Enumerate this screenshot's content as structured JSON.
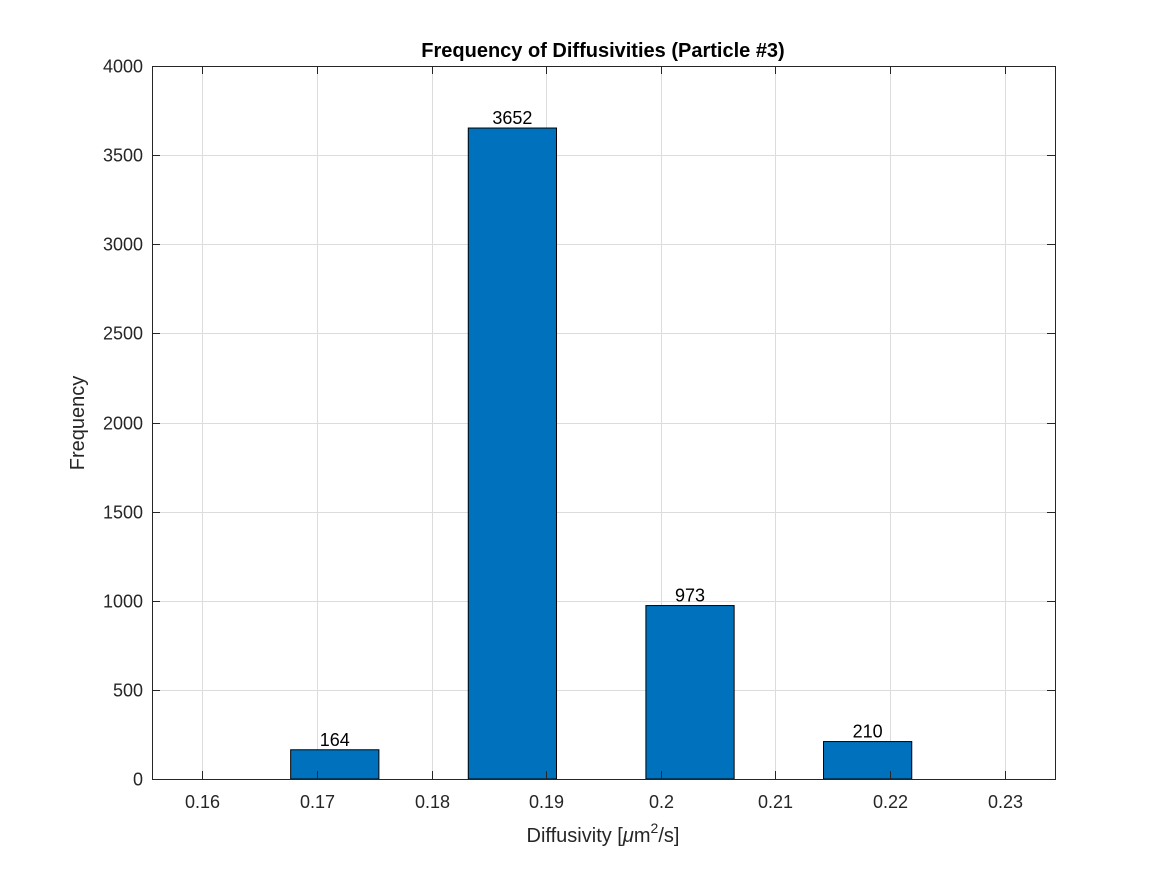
{
  "chart_data": {
    "type": "bar",
    "title": "Frequency of Diffusivities (Particle #3)",
    "xlabel_prefix": "Diffusivity [",
    "xlabel_mu": "μ",
    "xlabel_m": "m",
    "xlabel_sup": "2",
    "xlabel_suffix": "/s]",
    "ylabel": "Frequency",
    "xlim": [
      0.1556,
      0.2344
    ],
    "ylim": [
      0,
      4000
    ],
    "xticks": [
      0.16,
      0.17,
      0.18,
      0.19,
      0.2,
      0.21,
      0.22,
      0.23
    ],
    "xtick_labels": [
      "0.16",
      "0.17",
      "0.18",
      "0.19",
      "0.2",
      "0.21",
      "0.22",
      "0.23"
    ],
    "yticks": [
      0,
      500,
      1000,
      1500,
      2000,
      2500,
      3000,
      3500,
      4000
    ],
    "ytick_labels": [
      "0",
      "500",
      "1000",
      "1500",
      "2000",
      "2500",
      "3000",
      "3500",
      "4000"
    ],
    "bars": [
      {
        "x_left": 0.1677,
        "x_right": 0.1754,
        "value": 164,
        "label": "164"
      },
      {
        "x_left": 0.1832,
        "x_right": 0.1909,
        "value": 3652,
        "label": "3652"
      },
      {
        "x_left": 0.1987,
        "x_right": 0.2064,
        "value": 973,
        "label": "973"
      },
      {
        "x_left": 0.2142,
        "x_right": 0.2219,
        "value": 210,
        "label": "210"
      }
    ],
    "grid": true,
    "bar_color": "#0072BD"
  }
}
